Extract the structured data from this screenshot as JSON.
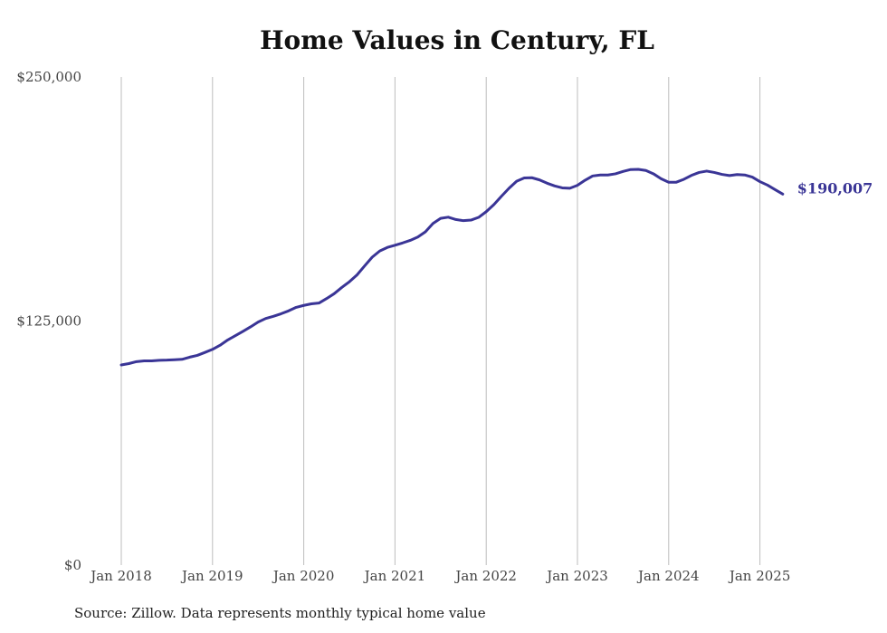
{
  "chart_data": {
    "type": "line",
    "title": "Home Values in Century, FL",
    "xlabel": "",
    "ylabel": "",
    "x_ticks": [
      "Jan 2018",
      "Jan 2019",
      "Jan 2020",
      "Jan 2021",
      "Jan 2022",
      "Jan 2023",
      "Jan 2024",
      "Jan 2025"
    ],
    "y_ticks": [
      "$250,000",
      "$125,000",
      "$0"
    ],
    "ylim": [
      0,
      250000
    ],
    "xlim": [
      "2018-01",
      "2025-04"
    ],
    "grid": "vertical",
    "line_color": "#3a3596",
    "end_label": "$190,007",
    "series": [
      {
        "x": [
          "2018-01",
          "2018-02",
          "2018-03",
          "2018-04",
          "2018-05",
          "2018-06",
          "2018-07",
          "2018-08",
          "2018-09",
          "2018-10",
          "2018-11",
          "2018-12",
          "2019-01",
          "2019-02",
          "2019-03",
          "2019-04",
          "2019-05",
          "2019-06",
          "2019-07",
          "2019-08",
          "2019-09",
          "2019-10",
          "2019-11",
          "2019-12",
          "2020-01",
          "2020-02",
          "2020-03",
          "2020-04",
          "2020-05",
          "2020-06",
          "2020-07",
          "2020-08",
          "2020-09",
          "2020-10",
          "2020-11",
          "2020-12",
          "2021-01",
          "2021-02",
          "2021-03",
          "2021-04",
          "2021-05",
          "2021-06",
          "2021-07",
          "2021-08",
          "2021-09",
          "2021-10",
          "2021-11",
          "2021-12",
          "2022-01",
          "2022-02",
          "2022-03",
          "2022-04",
          "2022-05",
          "2022-06",
          "2022-07",
          "2022-08",
          "2022-09",
          "2022-10",
          "2022-11",
          "2022-12",
          "2023-01",
          "2023-02",
          "2023-03",
          "2023-04",
          "2023-05",
          "2023-06",
          "2023-07",
          "2023-08",
          "2023-09",
          "2023-10",
          "2023-11",
          "2023-12",
          "2024-01",
          "2024-02",
          "2024-03",
          "2024-04",
          "2024-05",
          "2024-06",
          "2024-07",
          "2024-08",
          "2024-09",
          "2024-10",
          "2024-11",
          "2024-12",
          "2025-01",
          "2025-02",
          "2025-03",
          "2025-04"
        ],
        "values": [
          102500,
          103200,
          104200,
          104600,
          104600,
          104900,
          105000,
          105200,
          105400,
          106500,
          107400,
          108900,
          110500,
          112600,
          115300,
          117500,
          119700,
          122000,
          124500,
          126300,
          127400,
          128700,
          130200,
          132000,
          133000,
          133800,
          134200,
          136500,
          139000,
          142200,
          145100,
          148600,
          153200,
          157700,
          160900,
          162700,
          163800,
          165000,
          166300,
          168000,
          170700,
          175000,
          177600,
          178200,
          177000,
          176400,
          176700,
          178100,
          181000,
          184600,
          188900,
          193000,
          196600,
          198300,
          198400,
          197300,
          195600,
          194200,
          193200,
          193000,
          194500,
          197100,
          199300,
          199800,
          199800,
          200400,
          201600,
          202600,
          202700,
          202100,
          200400,
          197900,
          196100,
          196100,
          197600,
          199600,
          201100,
          201800,
          201100,
          200100,
          199500,
          200000,
          199800,
          198700,
          196400,
          194600,
          192300,
          190007
        ]
      }
    ]
  },
  "footer": {
    "source": "Source: Zillow. Data represents monthly typical home value"
  }
}
